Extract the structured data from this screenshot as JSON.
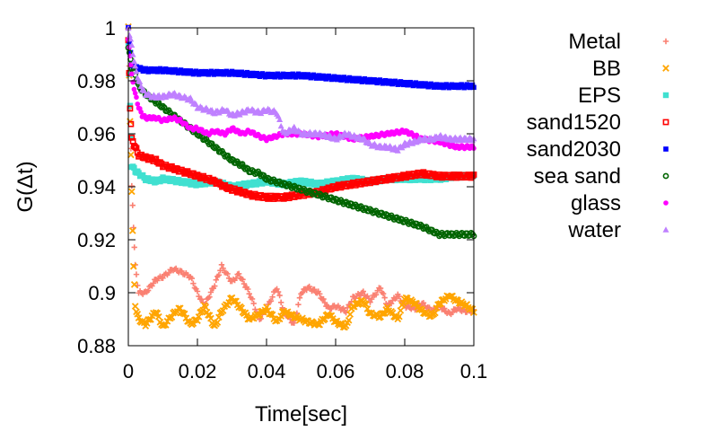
{
  "chart_data": {
    "type": "scatter",
    "xlabel": "Time[sec]",
    "ylabel": "G(Δt)",
    "xlim": [
      0,
      0.1
    ],
    "ylim": [
      0.88,
      1.0
    ],
    "xticks": [
      0,
      0.02,
      0.04,
      0.06,
      0.08,
      0.1
    ],
    "xtick_labels": [
      "0",
      "0.02",
      "0.04",
      "0.06",
      "0.08",
      "0.1"
    ],
    "yticks": [
      0.88,
      0.9,
      0.92,
      0.94,
      0.96,
      0.98,
      1.0
    ],
    "ytick_labels": [
      "0.88",
      "0.9",
      "0.92",
      "0.94",
      "0.96",
      "0.98",
      "1"
    ],
    "grid": false,
    "legend_position": "outside-right",
    "series": [
      {
        "name": "Metal",
        "color": "#fa8072",
        "marker": "plus",
        "x": [
          0,
          0.0005,
          0.001,
          0.0015,
          0.002,
          0.003,
          0.005,
          0.008,
          0.01,
          0.013,
          0.015,
          0.018,
          0.02,
          0.022,
          0.025,
          0.027,
          0.03,
          0.032,
          0.035,
          0.038,
          0.04,
          0.043,
          0.045,
          0.048,
          0.05,
          0.052,
          0.055,
          0.058,
          0.06,
          0.063,
          0.065,
          0.068,
          0.07,
          0.073,
          0.075,
          0.078,
          0.08,
          0.083,
          0.085,
          0.088,
          0.09,
          0.093,
          0.095,
          0.098,
          0.1
        ],
        "y": [
          1.0,
          0.97,
          0.94,
          0.925,
          0.91,
          0.9,
          0.9,
          0.905,
          0.906,
          0.909,
          0.908,
          0.906,
          0.9,
          0.895,
          0.903,
          0.91,
          0.904,
          0.907,
          0.9,
          0.89,
          0.894,
          0.902,
          0.893,
          0.888,
          0.9,
          0.902,
          0.9,
          0.894,
          0.895,
          0.893,
          0.898,
          0.9,
          0.897,
          0.902,
          0.895,
          0.899,
          0.895,
          0.894,
          0.896,
          0.893,
          0.895,
          0.892,
          0.894,
          0.893,
          0.893
        ]
      },
      {
        "name": "BB",
        "color": "#ffa500",
        "marker": "cross",
        "x": [
          0,
          0.0005,
          0.001,
          0.0015,
          0.002,
          0.003,
          0.005,
          0.008,
          0.01,
          0.013,
          0.015,
          0.018,
          0.02,
          0.022,
          0.025,
          0.027,
          0.03,
          0.032,
          0.035,
          0.038,
          0.04,
          0.043,
          0.045,
          0.048,
          0.05,
          0.052,
          0.055,
          0.058,
          0.06,
          0.063,
          0.065,
          0.068,
          0.07,
          0.073,
          0.075,
          0.078,
          0.08,
          0.083,
          0.085,
          0.088,
          0.09,
          0.093,
          0.095,
          0.098,
          0.1
        ],
        "y": [
          1.0,
          0.965,
          0.938,
          0.91,
          0.895,
          0.89,
          0.888,
          0.893,
          0.887,
          0.892,
          0.894,
          0.888,
          0.89,
          0.895,
          0.887,
          0.893,
          0.898,
          0.895,
          0.89,
          0.892,
          0.894,
          0.889,
          0.893,
          0.891,
          0.89,
          0.889,
          0.888,
          0.892,
          0.889,
          0.887,
          0.895,
          0.897,
          0.892,
          0.891,
          0.894,
          0.89,
          0.898,
          0.896,
          0.893,
          0.891,
          0.896,
          0.899,
          0.897,
          0.895,
          0.893
        ]
      },
      {
        "name": "EPS",
        "color": "#40e0d0",
        "marker": "square",
        "x": [
          0,
          0.0005,
          0.001,
          0.002,
          0.003,
          0.005,
          0.008,
          0.01,
          0.015,
          0.02,
          0.025,
          0.03,
          0.035,
          0.04,
          0.045,
          0.05,
          0.055,
          0.06,
          0.065,
          0.07,
          0.075,
          0.08,
          0.085,
          0.09,
          0.095,
          0.1
        ],
        "y": [
          0.995,
          0.97,
          0.948,
          0.946,
          0.945,
          0.943,
          0.942,
          0.943,
          0.942,
          0.941,
          0.942,
          0.94,
          0.941,
          0.942,
          0.941,
          0.942,
          0.941,
          0.942,
          0.943,
          0.942,
          0.943,
          0.943,
          0.943,
          0.943,
          0.944,
          0.944
        ]
      },
      {
        "name": "sand1520",
        "color": "#ff0000",
        "marker": "square-open",
        "x": [
          0,
          0.0005,
          0.001,
          0.002,
          0.003,
          0.005,
          0.008,
          0.01,
          0.013,
          0.015,
          0.018,
          0.02,
          0.023,
          0.025,
          0.028,
          0.03,
          0.033,
          0.035,
          0.04,
          0.045,
          0.05,
          0.055,
          0.06,
          0.065,
          0.07,
          0.075,
          0.08,
          0.085,
          0.09,
          0.095,
          0.1
        ],
        "y": [
          0.995,
          0.97,
          0.958,
          0.955,
          0.952,
          0.951,
          0.95,
          0.948,
          0.947,
          0.946,
          0.945,
          0.944,
          0.943,
          0.942,
          0.94,
          0.939,
          0.938,
          0.937,
          0.936,
          0.936,
          0.937,
          0.938,
          0.94,
          0.941,
          0.942,
          0.943,
          0.944,
          0.945,
          0.944,
          0.944,
          0.944
        ]
      },
      {
        "name": "sand2030",
        "color": "#0000ff",
        "marker": "square-filled",
        "x": [
          0,
          0.001,
          0.002,
          0.005,
          0.01,
          0.02,
          0.03,
          0.04,
          0.05,
          0.06,
          0.07,
          0.08,
          0.09,
          0.1
        ],
        "y": [
          1.0,
          0.986,
          0.985,
          0.984,
          0.984,
          0.983,
          0.983,
          0.982,
          0.982,
          0.981,
          0.98,
          0.979,
          0.978,
          0.978
        ]
      },
      {
        "name": "sea sand",
        "color": "#006400",
        "marker": "circle-open",
        "x": [
          0,
          0.001,
          0.002,
          0.003,
          0.005,
          0.008,
          0.01,
          0.013,
          0.015,
          0.018,
          0.02,
          0.023,
          0.025,
          0.028,
          0.03,
          0.033,
          0.035,
          0.038,
          0.04,
          0.045,
          0.05,
          0.055,
          0.06,
          0.065,
          0.07,
          0.075,
          0.08,
          0.085,
          0.09,
          0.095,
          0.1
        ],
        "y": [
          0.993,
          0.985,
          0.982,
          0.978,
          0.975,
          0.972,
          0.97,
          0.967,
          0.965,
          0.962,
          0.96,
          0.957,
          0.955,
          0.952,
          0.95,
          0.948,
          0.946,
          0.945,
          0.943,
          0.941,
          0.939,
          0.937,
          0.935,
          0.933,
          0.931,
          0.929,
          0.927,
          0.925,
          0.922,
          0.922,
          0.922
        ]
      },
      {
        "name": "glass",
        "color": "#ff00ff",
        "marker": "circle-filled",
        "x": [
          0,
          0.0005,
          0.001,
          0.002,
          0.003,
          0.004,
          0.005,
          0.008,
          0.01,
          0.013,
          0.015,
          0.018,
          0.02,
          0.023,
          0.025,
          0.028,
          0.03,
          0.033,
          0.035,
          0.038,
          0.04,
          0.045,
          0.05,
          0.055,
          0.06,
          0.065,
          0.07,
          0.075,
          0.08,
          0.085,
          0.09,
          0.095,
          0.1
        ],
        "y": [
          0.995,
          0.99,
          0.982,
          0.975,
          0.97,
          0.967,
          0.966,
          0.966,
          0.965,
          0.966,
          0.965,
          0.962,
          0.962,
          0.96,
          0.961,
          0.96,
          0.962,
          0.96,
          0.961,
          0.959,
          0.958,
          0.96,
          0.96,
          0.959,
          0.96,
          0.958,
          0.959,
          0.96,
          0.961,
          0.958,
          0.957,
          0.955,
          0.955
        ]
      },
      {
        "name": "water",
        "color": "#bf80ff",
        "marker": "triangle",
        "x": [
          0,
          0.001,
          0.002,
          0.003,
          0.004,
          0.005,
          0.007,
          0.01,
          0.013,
          0.015,
          0.018,
          0.02,
          0.023,
          0.025,
          0.028,
          0.03,
          0.033,
          0.035,
          0.038,
          0.04,
          0.043,
          0.045,
          0.048,
          0.05,
          0.053,
          0.055,
          0.058,
          0.06,
          0.063,
          0.065,
          0.068,
          0.07,
          0.073,
          0.075,
          0.078,
          0.08,
          0.083,
          0.085,
          0.088,
          0.09,
          0.093,
          0.095,
          0.098,
          0.1
        ],
        "y": [
          1.0,
          0.993,
          0.985,
          0.98,
          0.977,
          0.975,
          0.974,
          0.974,
          0.975,
          0.974,
          0.973,
          0.97,
          0.969,
          0.968,
          0.969,
          0.967,
          0.968,
          0.969,
          0.968,
          0.969,
          0.968,
          0.96,
          0.962,
          0.96,
          0.96,
          0.96,
          0.959,
          0.958,
          0.96,
          0.959,
          0.958,
          0.956,
          0.955,
          0.955,
          0.954,
          0.956,
          0.957,
          0.958,
          0.958,
          0.959,
          0.958,
          0.958,
          0.958,
          0.958
        ]
      }
    ]
  }
}
